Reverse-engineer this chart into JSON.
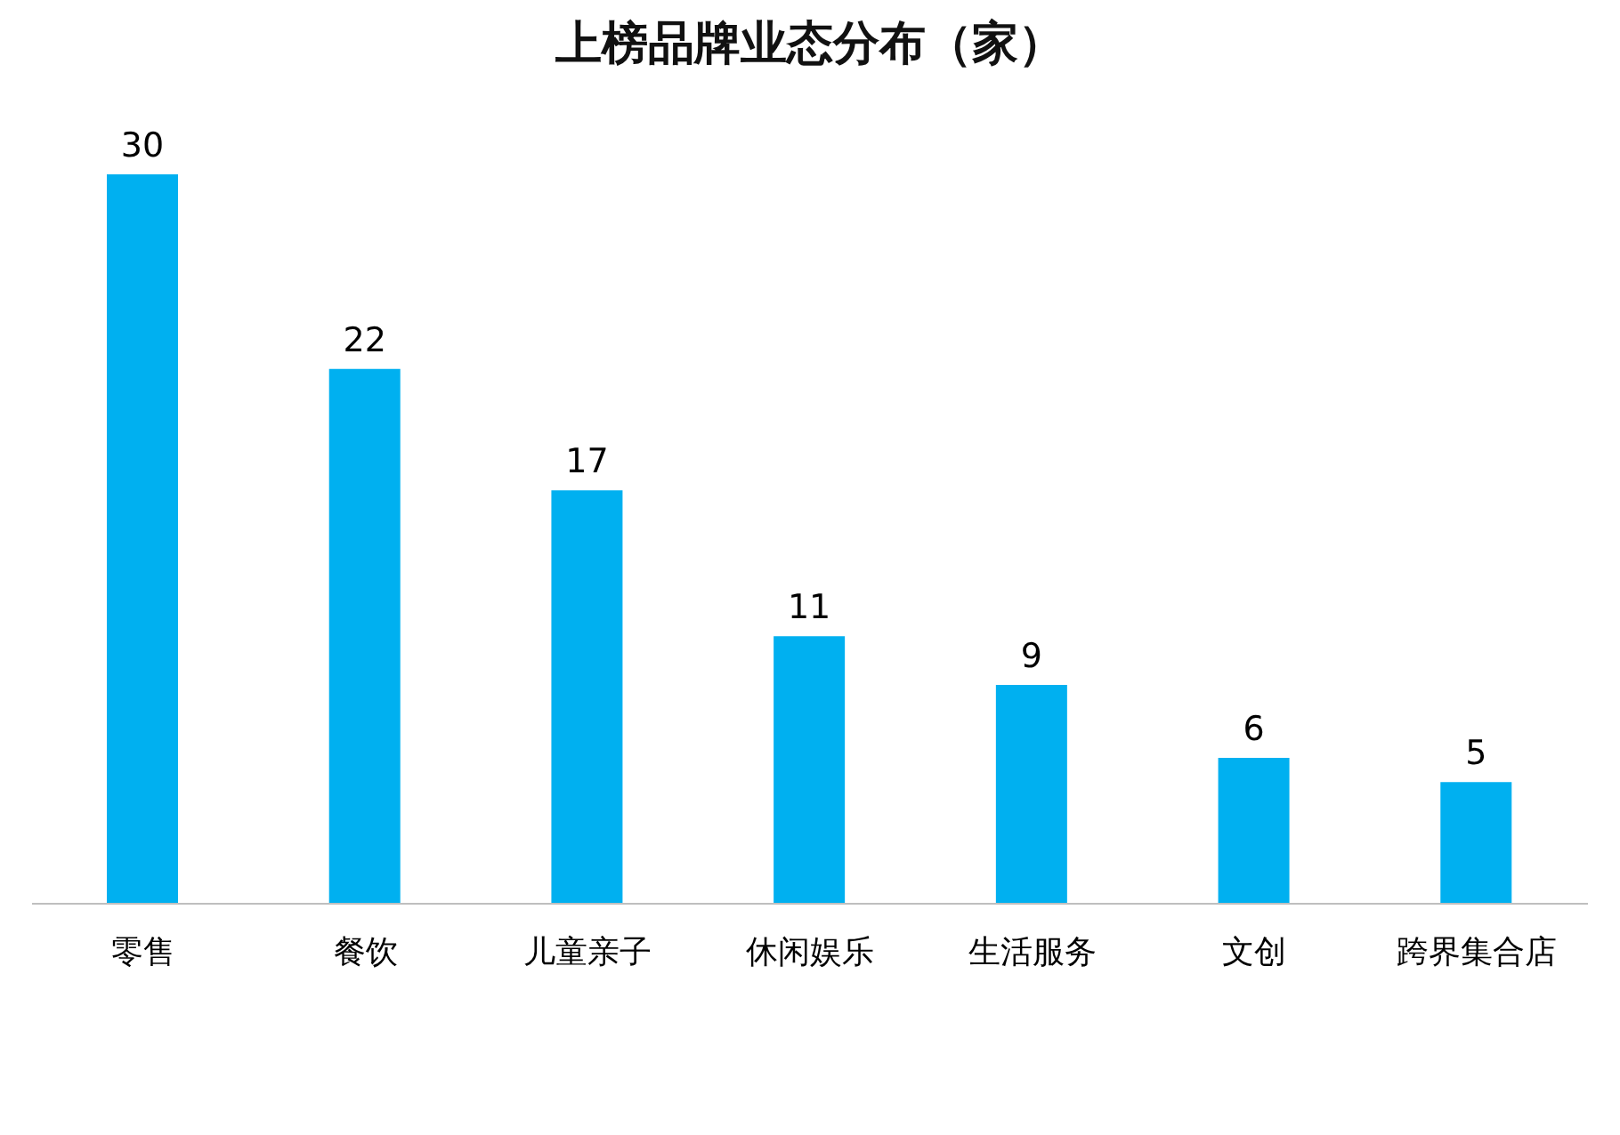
{
  "chart_data": {
    "type": "bar",
    "title": "上榜品牌业态分布（家）",
    "categories": [
      "零售",
      "餐饮",
      "儿童亲子",
      "休闲娱乐",
      "生活服务",
      "文创",
      "跨界集合店"
    ],
    "values": [
      30,
      22,
      17,
      11,
      9,
      6,
      5
    ],
    "color": "#00b0f0",
    "data_labels": true,
    "grid": false,
    "legend": false
  }
}
